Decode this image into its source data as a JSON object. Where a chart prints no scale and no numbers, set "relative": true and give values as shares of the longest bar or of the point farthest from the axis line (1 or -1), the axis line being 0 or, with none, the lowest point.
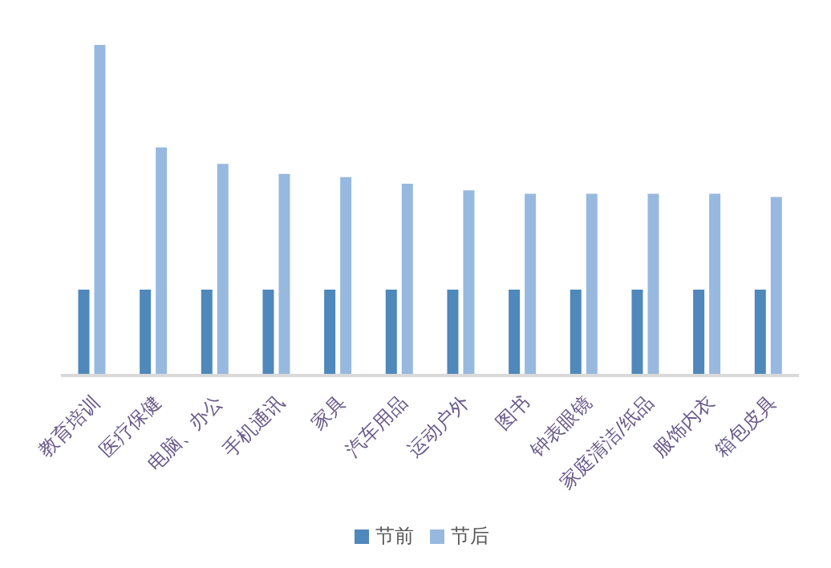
{
  "chart_data": {
    "type": "bar",
    "relative": true,
    "categories": [
      "教育培训",
      "医疗保健",
      "电脑、办公",
      "手机通讯",
      "家具",
      "汽车用品",
      "运动户外",
      "图书",
      "钟表眼镜",
      "家庭清洁/纸品",
      "服饰内衣",
      "箱包皮具"
    ],
    "series": [
      {
        "name": "节前",
        "color": "#4f88bb",
        "values": [
          0.26,
          0.26,
          0.26,
          0.26,
          0.26,
          0.26,
          0.26,
          0.26,
          0.26,
          0.26,
          0.26,
          0.26
        ]
      },
      {
        "name": "节后",
        "color": "#98b9df",
        "values": [
          1,
          0.69,
          0.64,
          0.61,
          0.6,
          0.58,
          0.56,
          0.55,
          0.55,
          0.55,
          0.55,
          0.54
        ]
      }
    ],
    "legend": "bottom",
    "grid": false
  }
}
